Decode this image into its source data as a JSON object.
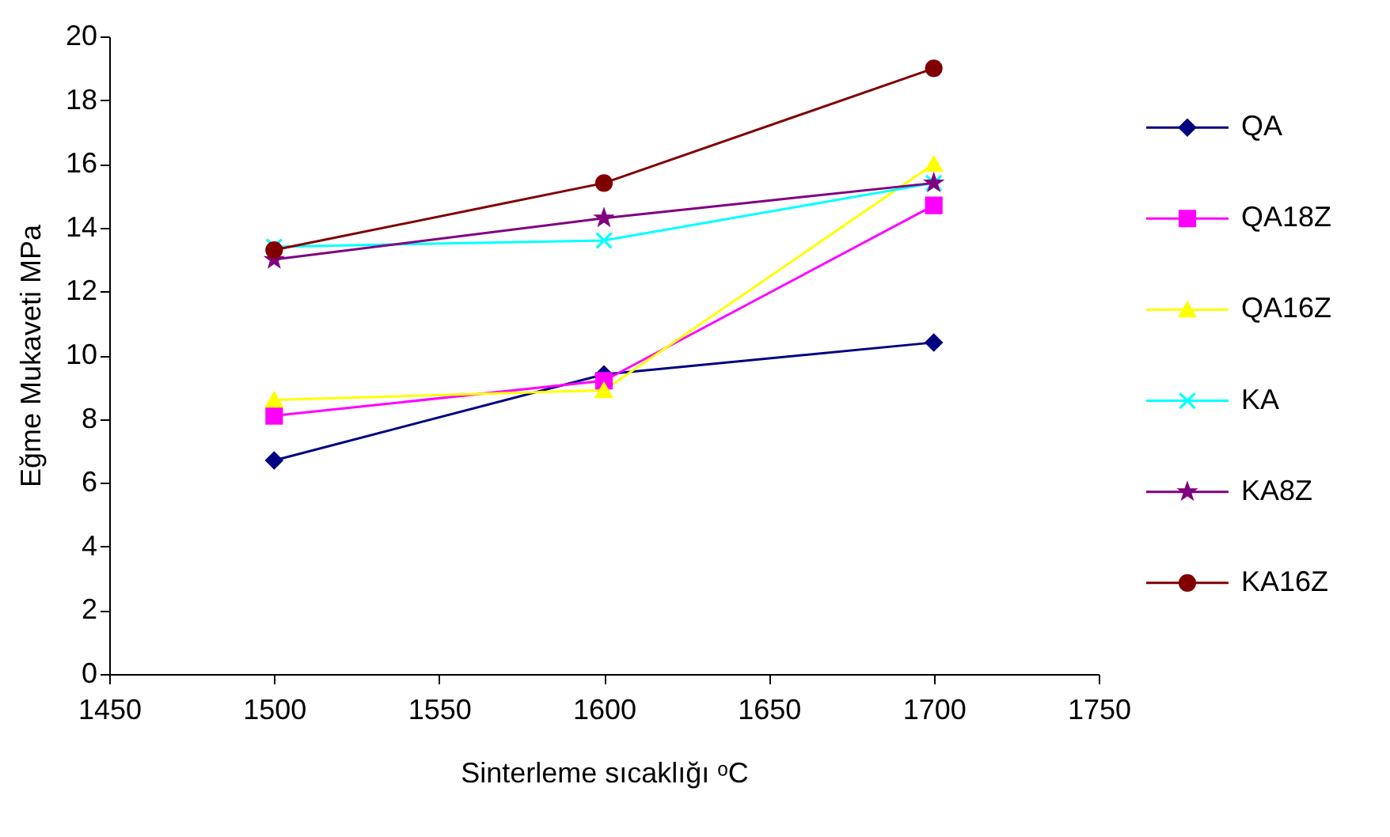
{
  "chart_data": {
    "type": "line",
    "xlabel": "Sinterleme sıcaklığı ᵒC",
    "ylabel": "Eğme Mukaveti MPa",
    "x": [
      1500,
      1600,
      1700
    ],
    "xlim": [
      1450,
      1750
    ],
    "xticks": [
      1450,
      1500,
      1550,
      1600,
      1650,
      1700,
      1750
    ],
    "ylim": [
      0,
      20
    ],
    "yticks": [
      0,
      2,
      4,
      6,
      8,
      10,
      12,
      14,
      16,
      18,
      20
    ],
    "grid": false,
    "legend": "right",
    "line_style": "solid",
    "series": [
      {
        "name": "QA",
        "color": "#000080",
        "marker": "diamond",
        "values": [
          6.7,
          9.4,
          10.4
        ]
      },
      {
        "name": "QA18Z",
        "color": "#ff00ff",
        "marker": "square",
        "values": [
          8.1,
          9.2,
          14.7
        ]
      },
      {
        "name": "QA16Z",
        "color": "#ffff00",
        "marker": "triangle",
        "values": [
          8.6,
          8.9,
          16.0
        ]
      },
      {
        "name": "KA",
        "color": "#00ffff",
        "marker": "cross",
        "values": [
          13.4,
          13.6,
          15.4
        ]
      },
      {
        "name": "KA8Z",
        "color": "#800080",
        "marker": "star",
        "values": [
          13.0,
          14.3,
          15.4
        ]
      },
      {
        "name": "KA16Z",
        "color": "#800000",
        "marker": "circle",
        "values": [
          13.3,
          15.4,
          19.0
        ]
      }
    ]
  }
}
